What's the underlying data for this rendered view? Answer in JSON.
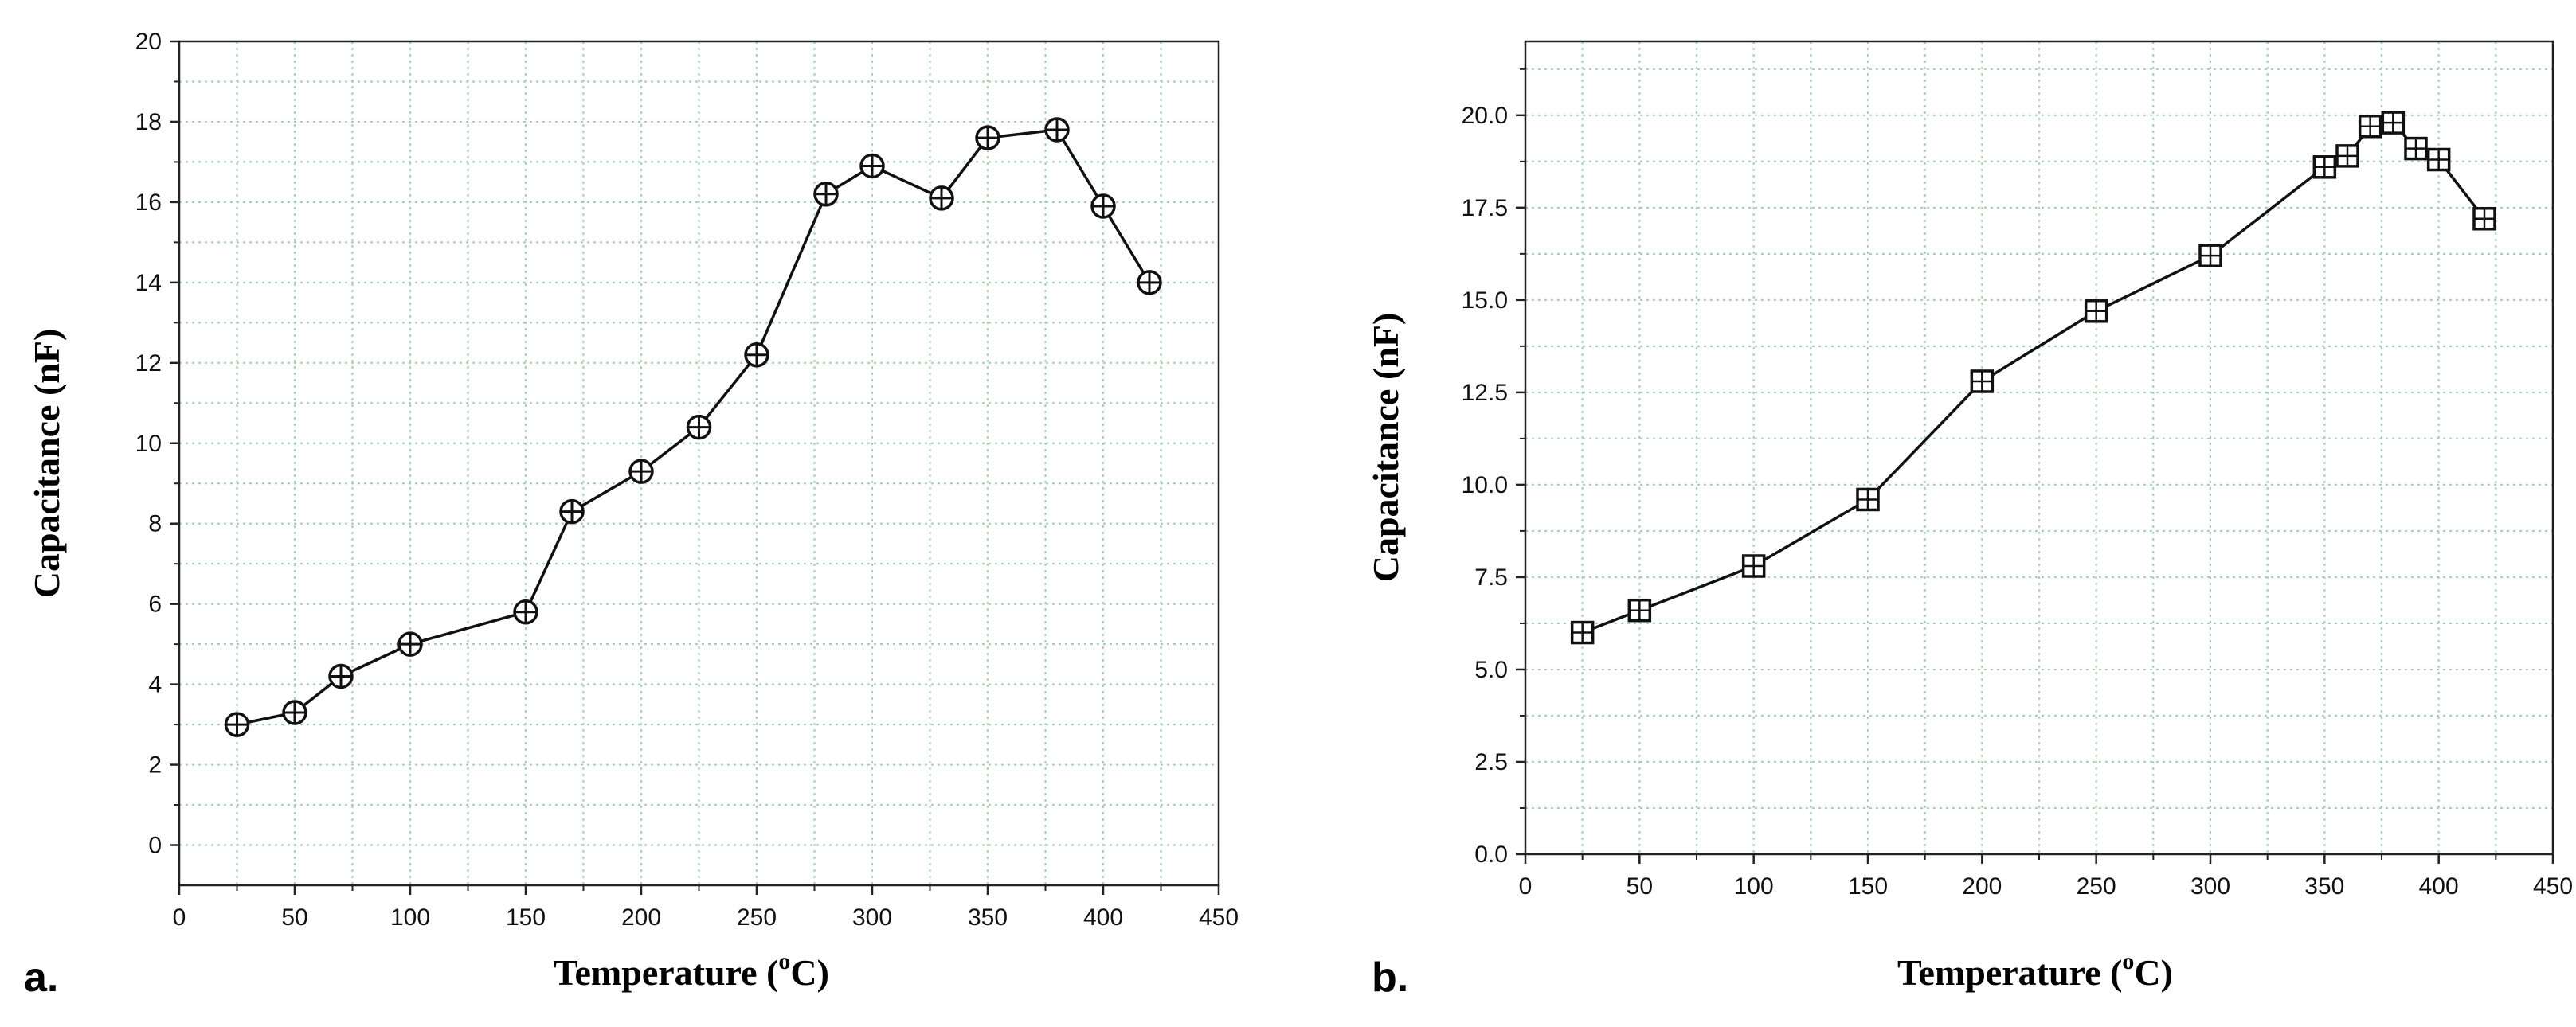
{
  "chart_data": [
    {
      "panel_label": "a.",
      "type": "line",
      "marker": "circle-plus",
      "xlabel": "Temperature",
      "xlabel_unit_sup": "o",
      "xlabel_unit": "C)",
      "xlabel_open": " (",
      "ylabel": "Capacitance (nF)",
      "xlim": [
        0,
        450
      ],
      "ylim": [
        -1,
        20
      ],
      "xticks": [
        0,
        50,
        100,
        150,
        200,
        250,
        300,
        350,
        400,
        450
      ],
      "yticks": [
        0,
        2,
        4,
        6,
        8,
        10,
        12,
        14,
        16,
        18,
        20
      ],
      "ytick_labels": [
        "0",
        "2",
        "4",
        "6",
        "8",
        "10",
        "12",
        "14",
        "16",
        "18",
        "20"
      ],
      "grid": true,
      "series": [
        {
          "name": "Capacitance",
          "x": [
            25,
            50,
            70,
            100,
            150,
            170,
            200,
            225,
            250,
            280,
            300,
            330,
            350,
            380,
            400,
            420
          ],
          "y": [
            3.0,
            3.3,
            4.2,
            5.0,
            5.8,
            8.3,
            9.3,
            10.4,
            12.2,
            16.2,
            16.9,
            16.1,
            17.6,
            17.8,
            15.9,
            14.0
          ]
        }
      ]
    },
    {
      "panel_label": "b.",
      "type": "line",
      "marker": "square-plus",
      "xlabel": "Temperature",
      "xlabel_unit_sup": "o",
      "xlabel_unit": "C)",
      "xlabel_open": " (",
      "ylabel": "Capacitance (nF)",
      "xlim": [
        0,
        450
      ],
      "ylim": [
        0,
        22
      ],
      "xticks": [
        0,
        50,
        100,
        150,
        200,
        250,
        300,
        350,
        400,
        450
      ],
      "yticks": [
        0,
        2.5,
        5,
        7.5,
        10,
        12.5,
        15,
        17.5,
        20
      ],
      "ytick_labels": [
        "0.0",
        "2.5",
        "5.0",
        "7.5",
        "10.0",
        "12.5",
        "15.0",
        "17.5",
        "20.0"
      ],
      "grid": true,
      "series": [
        {
          "name": "Capacitance",
          "x": [
            25,
            50,
            100,
            150,
            200,
            250,
            300,
            350,
            360,
            370,
            380,
            390,
            400,
            420
          ],
          "y": [
            6.0,
            6.6,
            7.8,
            9.6,
            12.8,
            14.7,
            16.2,
            18.6,
            18.9,
            19.7,
            19.8,
            19.1,
            18.8,
            17.2
          ]
        }
      ]
    }
  ]
}
